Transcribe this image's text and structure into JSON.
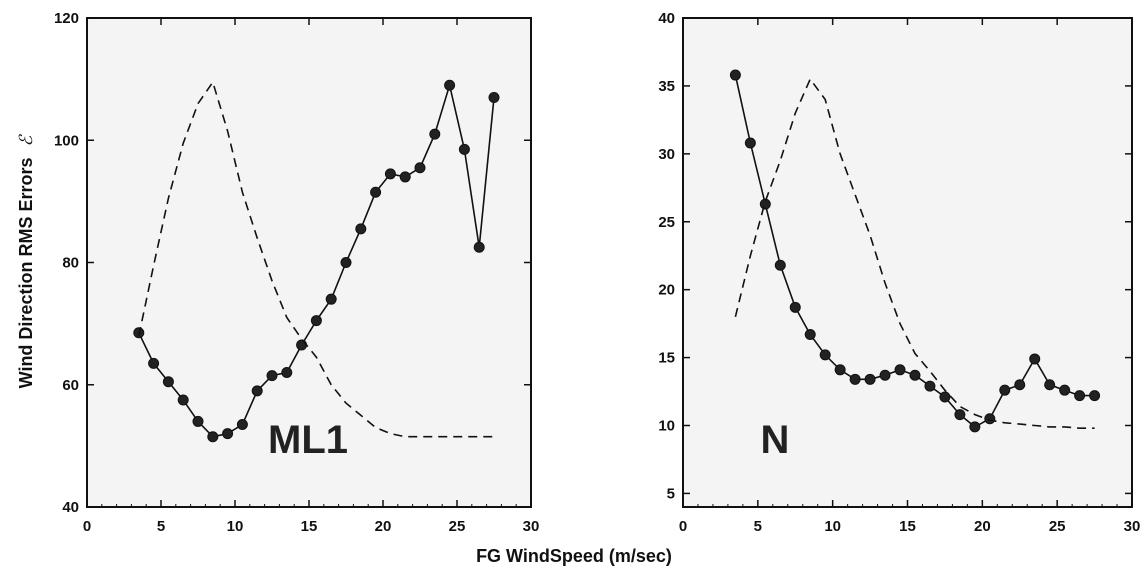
{
  "chart_data": {
    "type": "line",
    "ylabel": "Wind Direction RMS Errors",
    "ylabel_symbol": "ℰ",
    "xlabel": "FG WindSpeed (m/sec)",
    "panels": [
      {
        "label": "ML1",
        "xlim": [
          0,
          30
        ],
        "ylim": [
          40,
          120
        ],
        "xticks": [
          "0",
          "5",
          "10",
          "15",
          "20",
          "25",
          "30"
        ],
        "yticks": [
          "40",
          "60",
          "80",
          "100",
          "120"
        ],
        "series": [
          {
            "style": "solid-markers",
            "x": [
              3.5,
              4.5,
              5.5,
              6.5,
              7.5,
              8.5,
              9.5,
              10.5,
              11.5,
              12.5,
              13.5,
              14.5,
              15.5,
              16.5,
              17.5,
              18.5,
              19.5,
              20.5,
              21.5,
              22.5,
              23.5,
              24.5,
              25.5,
              26.5,
              27.5
            ],
            "y": [
              68.5,
              63.5,
              60.5,
              57.5,
              54.0,
              51.5,
              52.0,
              53.5,
              59.0,
              61.5,
              62.0,
              66.5,
              70.5,
              74.0,
              80.0,
              85.5,
              91.5,
              94.5,
              94.0,
              95.5,
              101.0,
              109.0,
              98.5,
              82.5,
              107.0
            ]
          },
          {
            "style": "dashed",
            "x": [
              3.5,
              4.5,
              5.5,
              6.5,
              7.5,
              8.5,
              9.5,
              10.5,
              11.5,
              12.5,
              13.5,
              14.5,
              15.5,
              16.5,
              17.5,
              18.5,
              19.5,
              20.5,
              21.5,
              22.5,
              23.5,
              24.5,
              25.5,
              26.5,
              27.5
            ],
            "y": [
              68.0,
              79.5,
              90.5,
              99.5,
              106.0,
              109.5,
              101.5,
              91.5,
              84.0,
              77.0,
              71.0,
              67.5,
              64.5,
              60.0,
              57.0,
              55.0,
              53.0,
              52.0,
              51.5,
              51.5,
              51.5,
              51.5,
              51.5,
              51.5,
              51.5
            ]
          }
        ]
      },
      {
        "label": "N",
        "xlim": [
          0,
          30
        ],
        "ylim": [
          4,
          40
        ],
        "xticks": [
          "0",
          "5",
          "10",
          "15",
          "20",
          "25",
          "30"
        ],
        "yticks": [
          "5",
          "10",
          "15",
          "20",
          "25",
          "30",
          "35",
          "40"
        ],
        "series": [
          {
            "style": "solid-markers",
            "x": [
              3.5,
              4.5,
              5.5,
              6.5,
              7.5,
              8.5,
              9.5,
              10.5,
              11.5,
              12.5,
              13.5,
              14.5,
              15.5,
              16.5,
              17.5,
              18.5,
              19.5,
              20.5,
              21.5,
              22.5,
              23.5,
              24.5,
              25.5,
              26.5,
              27.5
            ],
            "y": [
              35.8,
              30.8,
              26.3,
              21.8,
              18.7,
              16.7,
              15.2,
              14.1,
              13.4,
              13.4,
              13.7,
              14.1,
              13.7,
              12.9,
              12.1,
              10.8,
              9.9,
              10.5,
              12.6,
              13.0,
              14.9,
              13.0,
              12.6,
              12.2,
              12.2
            ]
          },
          {
            "style": "dashed",
            "x": [
              3.5,
              4.5,
              5.5,
              6.5,
              7.5,
              8.5,
              9.5,
              10.5,
              11.5,
              12.5,
              13.5,
              14.5,
              15.5,
              16.5,
              17.5,
              18.5,
              19.5,
              20.5,
              21.5,
              22.5,
              23.5,
              24.5,
              25.5,
              26.5,
              27.5
            ],
            "y": [
              18.0,
              22.5,
              26.5,
              29.5,
              33.0,
              35.5,
              34.0,
              30.0,
              27.0,
              24.0,
              20.5,
              17.5,
              15.3,
              14.0,
              12.6,
              11.4,
              10.8,
              10.4,
              10.2,
              10.1,
              10.0,
              9.9,
              9.9,
              9.8,
              9.8
            ]
          }
        ]
      }
    ]
  }
}
